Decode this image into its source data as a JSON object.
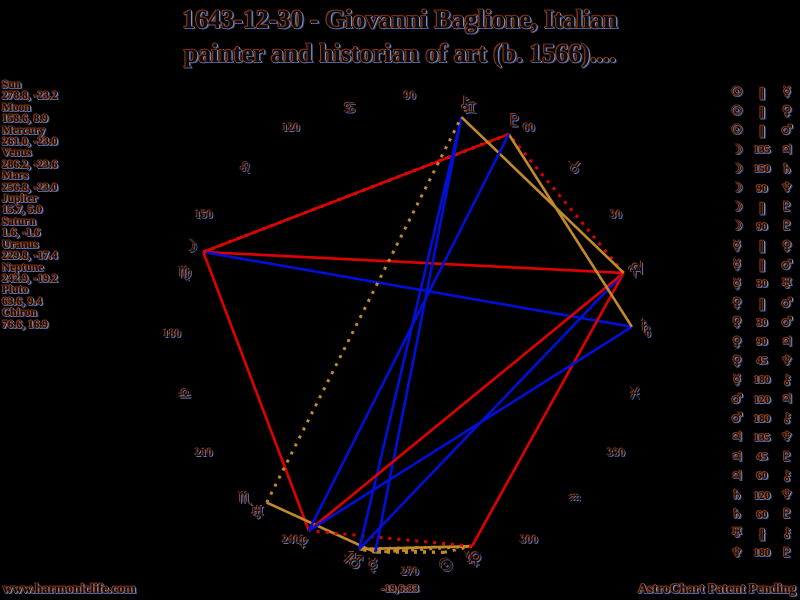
{
  "title": {
    "line1": "1643-12-30 - Giovanni Baglione, Italian",
    "line2": "painter and historian of art (b. 1566)...."
  },
  "footer": {
    "left": "www.harmoniclife.com",
    "right": "AstroChart Patent Pending"
  },
  "wheel_extra_label": "-19,6:33",
  "chart_data": {
    "type": "astro-wheel",
    "description": "Natal astrology wheel: planets plotted by ecliptic longitude (0 deg at right, counter-clockwise), aspect lines between planets, planet list shows longitude and declination",
    "planets": [
      {
        "name": "Sun",
        "glyph": "☉",
        "lon": 278.8,
        "dec": -23.2,
        "display": "278.8, -23.2"
      },
      {
        "name": "Moon",
        "glyph": "☽",
        "lon": 158.6,
        "dec": 8.9,
        "display": "158.6, 8.9"
      },
      {
        "name": "Mercury",
        "glyph": "☿",
        "lon": 261.0,
        "dec": -23.0,
        "display": "261.0, -23.0"
      },
      {
        "name": "Venus",
        "glyph": "♀",
        "lon": 286.2,
        "dec": -23.6,
        "display": "286.2, -23.6"
      },
      {
        "name": "Mars",
        "glyph": "♂",
        "lon": 256.8,
        "dec": -23.0,
        "display": "256.8, -23.0"
      },
      {
        "name": "Jupiter",
        "glyph": "♃",
        "lon": 15.7,
        "dec": 5.0,
        "display": "15.7, 5.0"
      },
      {
        "name": "Saturn",
        "glyph": "♄",
        "lon": 1.6,
        "dec": -1.6,
        "display": "1.6, -1.6"
      },
      {
        "name": "Uranus",
        "glyph": "♅",
        "lon": 229.8,
        "dec": -17.4,
        "display": "229.8, -17.4"
      },
      {
        "name": "Neptune",
        "glyph": "♆",
        "lon": 242.9,
        "dec": -19.2,
        "display": "242.9, -19.2"
      },
      {
        "name": "Pluto",
        "glyph": "♇",
        "lon": 63.6,
        "dec": 9.4,
        "display": "63.6, 9.4"
      },
      {
        "name": "Chiron",
        "glyph": "⚷",
        "lon": 76.6,
        "dec": 16.9,
        "display": "76.6, 16.9"
      }
    ],
    "aspects": [
      {
        "a": "Sun",
        "type": "∥",
        "b": "Mercury"
      },
      {
        "a": "Sun",
        "type": "∥",
        "b": "Venus"
      },
      {
        "a": "Sun",
        "type": "∥",
        "b": "Mars"
      },
      {
        "a": "Moon",
        "type": "135",
        "b": "Jupiter"
      },
      {
        "a": "Moon",
        "type": "150",
        "b": "Saturn"
      },
      {
        "a": "Moon",
        "type": "90",
        "b": "Neptune"
      },
      {
        "a": "Moon",
        "type": "∥",
        "b": "Pluto"
      },
      {
        "a": "Moon",
        "type": "90",
        "b": "Pluto"
      },
      {
        "a": "Mercury",
        "type": "∥",
        "b": "Venus"
      },
      {
        "a": "Mercury",
        "type": "∥",
        "b": "Mars"
      },
      {
        "a": "Mercury",
        "type": "30",
        "b": "Uranus"
      },
      {
        "a": "Venus",
        "type": "∥",
        "b": "Mars"
      },
      {
        "a": "Venus",
        "type": "30",
        "b": "Mars"
      },
      {
        "a": "Venus",
        "type": "90",
        "b": "Jupiter"
      },
      {
        "a": "Venus",
        "type": "45",
        "b": "Neptune"
      },
      {
        "a": "Mercury",
        "type": "180",
        "b": "Chiron"
      },
      {
        "a": "Mars",
        "type": "120",
        "b": "Jupiter"
      },
      {
        "a": "Mars",
        "type": "180",
        "b": "Chiron"
      },
      {
        "a": "Jupiter",
        "type": "135",
        "b": "Neptune"
      },
      {
        "a": "Jupiter",
        "type": "45",
        "b": "Pluto"
      },
      {
        "a": "Jupiter",
        "type": "60",
        "b": "Chiron"
      },
      {
        "a": "Saturn",
        "type": "120",
        "b": "Neptune"
      },
      {
        "a": "Saturn",
        "type": "60",
        "b": "Pluto"
      },
      {
        "a": "Uranus",
        "type": "∦",
        "b": "Chiron"
      },
      {
        "a": "Neptune",
        "type": "180",
        "b": "Pluto"
      }
    ],
    "ticks": [
      0,
      30,
      60,
      90,
      120,
      150,
      180,
      210,
      240,
      270,
      300,
      330
    ],
    "signs": [
      "♈",
      "♉",
      "♊",
      "♋",
      "♌",
      "♍",
      "♎",
      "♏",
      "♐",
      "♑",
      "♒",
      "♓"
    ]
  },
  "colors": {
    "red": "#e00000",
    "blue": "#0010d8",
    "gold": "#c28a28"
  }
}
